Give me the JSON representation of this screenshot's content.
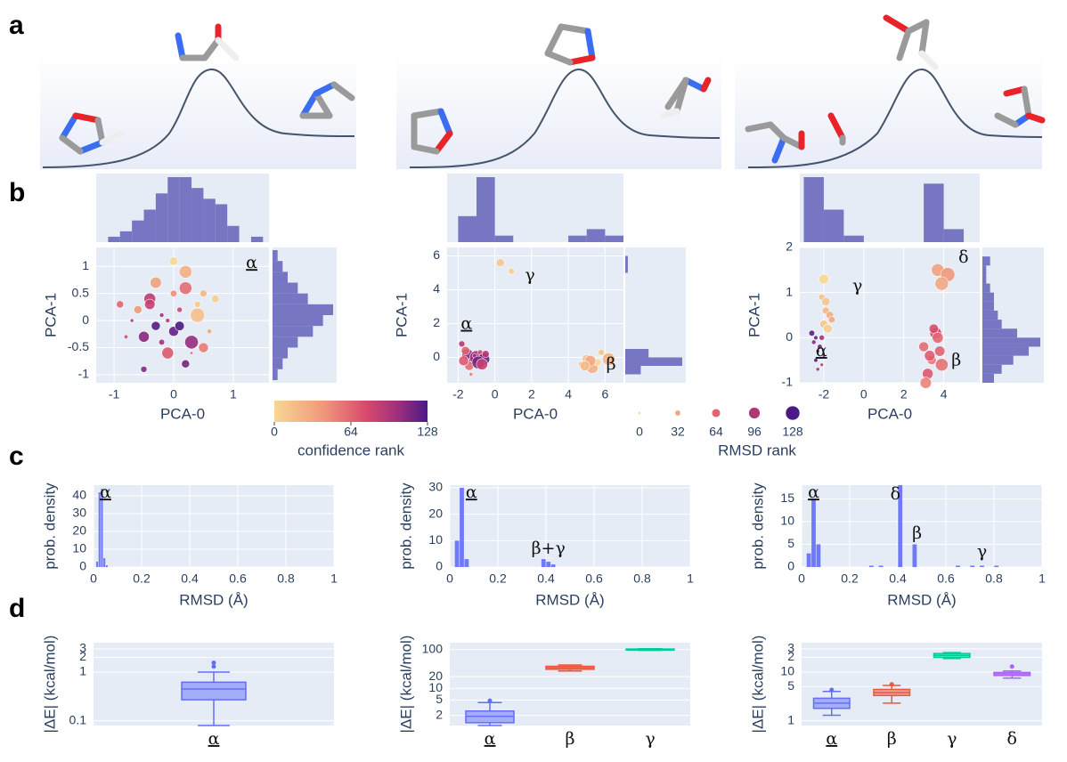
{
  "panel_labels": [
    "a",
    "b",
    "c",
    "d"
  ],
  "color_legend": {
    "ticks": [
      0,
      64,
      128
    ],
    "label": "confidence rank"
  },
  "size_legend": {
    "ticks": [
      0,
      32,
      64,
      96,
      128
    ],
    "label": "RMSD rank"
  },
  "chart_data": [
    {
      "type": "scatter",
      "x_label": "PCA-0",
      "y_label": "PCA-1",
      "xlim": [
        -1.3,
        1.6
      ],
      "ylim": [
        -1.15,
        1.35
      ],
      "xticks": [
        -1,
        0,
        1
      ],
      "yticks": [
        -1,
        -0.5,
        0,
        0.5,
        1
      ],
      "x": [
        -0.6,
        -0.4,
        -0.2,
        0,
        0.2,
        0.4,
        -0.5,
        -0.3,
        0.1,
        0.3,
        0.5,
        -0.7,
        -0.1,
        0.2,
        0.6,
        -0.4,
        0,
        0.4,
        -0.2,
        0.1,
        -0.8,
        0.7,
        -0.3,
        0.3,
        0,
        -0.5,
        0.5,
        0.2,
        -0.1,
        -0.9
      ],
      "y": [
        0.2,
        0.4,
        0.1,
        -0.2,
        0.6,
        0.3,
        -0.3,
        -0.1,
        0.2,
        -0.4,
        0.5,
        0,
        -0.6,
        -0.8,
        -0.2,
        0.3,
        0.5,
        0.1,
        -0.4,
        -0.1,
        -0.3,
        0.4,
        0.7,
        -0.6,
        1.1,
        -0.9,
        -0.5,
        0.9,
        0,
        0.3
      ],
      "color_rank": [
        40,
        90,
        100,
        120,
        60,
        10,
        110,
        125,
        80,
        105,
        20,
        95,
        70,
        115,
        30,
        85,
        45,
        15,
        100,
        128,
        75,
        5,
        35,
        60,
        0,
        110,
        55,
        25,
        90,
        65
      ],
      "size_rank": [
        60,
        100,
        20,
        80,
        110,
        40,
        90,
        70,
        30,
        120,
        50,
        10,
        100,
        60,
        25,
        85,
        45,
        128,
        35,
        75,
        15,
        55,
        95,
        5,
        65,
        40,
        80,
        110,
        20,
        50
      ],
      "x_hist": {
        "bins": [
          -1.1,
          -0.9,
          -0.7,
          -0.5,
          -0.3,
          -0.1,
          0.1,
          0.3,
          0.5,
          0.7,
          0.9,
          1.1,
          1.3,
          1.5
        ],
        "counts": [
          1,
          2,
          4,
          6,
          9,
          12,
          12,
          10,
          8,
          7,
          3,
          0,
          1
        ]
      },
      "y_hist": {
        "bins": [
          -1.1,
          -0.9,
          -0.7,
          -0.5,
          -0.3,
          -0.1,
          0.1,
          0.3,
          0.5,
          0.7,
          0.9,
          1.1,
          1.3
        ],
        "counts": [
          1,
          2,
          3,
          5,
          8,
          10,
          12,
          7,
          5,
          3,
          2,
          1
        ]
      },
      "annotations": [
        "α"
      ]
    },
    {
      "type": "scatter",
      "x_label": "PCA-0",
      "y_label": "PCA-1",
      "xlim": [
        -2.6,
        7
      ],
      "ylim": [
        -1.5,
        6.5
      ],
      "xticks": [
        -2,
        0,
        2,
        4,
        6
      ],
      "yticks": [
        0,
        2,
        4,
        6
      ],
      "x": [
        -1.8,
        -1.5,
        -1.2,
        -1,
        -0.8,
        -0.6,
        -1.4,
        -1.1,
        -0.9,
        -0.5,
        -1.7,
        -1.3,
        -0.7,
        -1.6,
        0.3,
        0.9,
        4.7,
        5,
        5.3,
        5.6,
        6,
        5.2,
        5.8,
        4.9,
        6.2
      ],
      "y": [
        0.8,
        0.2,
        -0.2,
        0,
        0.3,
        -0.1,
        -0.5,
        0.1,
        -0.3,
        0.2,
        -0.2,
        -1,
        -0.4,
        0.4,
        5.6,
        5.1,
        -0.4,
        -0.1,
        -0.6,
        -0.3,
        0.1,
        -0.2,
        0.3,
        -0.5,
        -0.1
      ],
      "color_rank": [
        90,
        110,
        128,
        100,
        75,
        120,
        60,
        105,
        115,
        95,
        70,
        55,
        85,
        65,
        10,
        5,
        20,
        15,
        25,
        0,
        8,
        30,
        12,
        18,
        22
      ],
      "size_rank": [
        40,
        90,
        60,
        120,
        30,
        100,
        70,
        20,
        110,
        50,
        80,
        10,
        95,
        65,
        60,
        40,
        30,
        70,
        100,
        50,
        20,
        90,
        40,
        80,
        110
      ],
      "x_hist": {
        "bins": [
          -2,
          -1,
          0,
          1,
          2,
          3,
          4,
          5,
          6,
          7
        ],
        "counts": [
          4,
          10,
          1,
          0,
          0,
          0,
          1,
          2,
          1
        ]
      },
      "y_hist": {
        "bins": [
          -1,
          -0.5,
          0,
          0.5,
          1,
          1.5,
          2,
          2.5,
          3,
          3.5,
          4,
          4.5,
          5,
          5.5,
          6
        ],
        "counts": [
          6,
          22,
          9,
          0,
          0,
          0,
          0,
          0,
          0,
          0,
          0,
          0,
          1,
          1
        ]
      },
      "annotations": [
        "α",
        "γ",
        "β"
      ]
    },
    {
      "type": "scatter",
      "x_label": "PCA-0",
      "y_label": "PCA-1",
      "xlim": [
        -3.2,
        5.8
      ],
      "ylim": [
        -1,
        2
      ],
      "xticks": [
        -2,
        0,
        2,
        4
      ],
      "yticks": [
        -1,
        0,
        1,
        2
      ],
      "x": [
        -2.5,
        -2.3,
        -2.1,
        -2.4,
        -2.2,
        -2,
        -2.6,
        -2.3,
        -2.1,
        -2.4,
        -2,
        -1.9,
        -1.8,
        -2.1,
        -1.7,
        -2,
        -1.6,
        -1.9,
        3,
        3.2,
        3.4,
        3.6,
        3.8,
        3.1,
        3.5,
        3.9,
        3.3,
        3.7,
        3.7,
        4.2,
        3.9
      ],
      "y": [
        -0.1,
        -0.3,
        0,
        -0.5,
        -0.2,
        -0.4,
        0.1,
        -0.7,
        -0.6,
        0,
        0.3,
        0.6,
        0.2,
        0.9,
        0.5,
        1.3,
        0.4,
        0.8,
        -0.2,
        -0.8,
        -0.5,
        0.1,
        -0.3,
        -1,
        0.2,
        -0.6,
        -0.4,
        0,
        1.5,
        1.4,
        1.2
      ],
      "color_rank": [
        110,
        120,
        100,
        128,
        115,
        105,
        125,
        95,
        90,
        118,
        10,
        20,
        5,
        15,
        25,
        0,
        30,
        12,
        60,
        70,
        55,
        80,
        65,
        50,
        75,
        58,
        68,
        62,
        35,
        40,
        30
      ],
      "size_rank": [
        20,
        10,
        30,
        15,
        25,
        5,
        35,
        12,
        8,
        18,
        60,
        50,
        70,
        40,
        55,
        80,
        45,
        65,
        80,
        90,
        70,
        100,
        85,
        95,
        75,
        110,
        88,
        92,
        110,
        128,
        120
      ],
      "x_hist": {
        "bins": [
          -3,
          -2,
          -1,
          0,
          1,
          2,
          3,
          4,
          5
        ],
        "counts": [
          10,
          5,
          1,
          0,
          0,
          0,
          9,
          2
        ]
      },
      "y_hist": {
        "bins": [
          -1,
          -0.8,
          -0.6,
          -0.4,
          -0.2,
          0,
          0.2,
          0.4,
          0.6,
          0.8,
          1,
          1.2,
          1.4,
          1.6,
          1.8,
          2
        ],
        "counts": [
          3,
          5,
          8,
          12,
          15,
          9,
          5,
          4,
          3,
          3,
          2,
          1,
          1,
          2,
          0
        ]
      },
      "annotations": [
        "α",
        "γ",
        "β",
        "δ"
      ]
    },
    {
      "type": "histogram",
      "x_label": "RMSD (Å)",
      "y_label": "prob. density",
      "xlim": [
        0,
        1
      ],
      "ylim": [
        0,
        46
      ],
      "xticks": [
        0,
        0.2,
        0.4,
        0.6,
        0.8,
        1
      ],
      "yticks": [
        0,
        10,
        20,
        30,
        40
      ],
      "color": "#636efa",
      "bins": [
        0.01,
        0.02,
        0.03,
        0.04,
        0.05,
        0.06
      ],
      "counts": [
        3,
        42,
        44,
        5,
        1
      ],
      "annotations": [
        "α"
      ]
    },
    {
      "type": "histogram",
      "x_label": "RMSD (Å)",
      "y_label": "prob. density",
      "xlim": [
        0,
        1
      ],
      "ylim": [
        0,
        31
      ],
      "xticks": [
        0,
        0.2,
        0.4,
        0.6,
        0.8,
        1
      ],
      "yticks": [
        0,
        10,
        20,
        30
      ],
      "color": "#636efa",
      "bins": [
        0.02,
        0.04,
        0.06,
        0.08,
        0.1,
        0.12,
        0.14,
        0.16,
        0.18,
        0.2,
        0.22,
        0.24,
        0.26,
        0.28,
        0.3,
        0.32,
        0.34,
        0.36,
        0.38,
        0.4,
        0.42,
        0.44
      ],
      "counts": [
        10,
        30,
        3,
        0,
        0,
        0,
        0,
        0,
        0,
        0,
        0,
        0,
        0,
        0,
        0,
        0,
        0,
        0,
        3,
        2,
        1
      ],
      "annotations": [
        "α",
        "β+γ"
      ]
    },
    {
      "type": "histogram",
      "x_label": "RMSD (Å)",
      "y_label": "prob. density",
      "xlim": [
        0,
        1
      ],
      "ylim": [
        0,
        18
      ],
      "xticks": [
        0,
        0.2,
        0.4,
        0.6,
        0.8,
        1
      ],
      "yticks": [
        0,
        5,
        10,
        15
      ],
      "color": "#636efa",
      "bins": [
        0.02,
        0.04,
        0.06,
        0.08,
        0.1,
        0.12,
        0.14,
        0.16,
        0.18,
        0.2,
        0.22,
        0.24,
        0.26,
        0.28,
        0.3,
        0.32,
        0.34,
        0.36,
        0.38,
        0.4,
        0.42,
        0.44,
        0.46,
        0.48,
        0.5,
        0.52,
        0.54,
        0.56,
        0.58,
        0.6,
        0.62,
        0.64,
        0.66,
        0.68,
        0.7,
        0.72,
        0.74,
        0.76,
        0.78,
        0.8,
        0.82,
        0.84
      ],
      "counts": [
        3,
        15,
        5,
        0,
        0,
        0,
        0,
        0,
        0,
        0,
        0,
        0,
        0,
        0.3,
        0,
        0.3,
        0,
        0,
        0,
        18,
        0,
        0,
        5,
        0,
        0,
        0,
        0,
        0,
        0,
        0,
        0,
        0.3,
        0,
        0,
        0.3,
        0,
        0.3,
        0,
        0,
        0.3,
        0
      ],
      "annotations": [
        "α",
        "δ",
        "β",
        "γ"
      ]
    },
    {
      "type": "box",
      "y_label": "|ΔE| (kcal/mol)",
      "log_y": true,
      "ylim": [
        0.08,
        4
      ],
      "yticks": [
        0.1,
        1,
        2,
        3
      ],
      "categories": [
        "α"
      ],
      "boxes": [
        {
          "color": "#636efa",
          "min": 0.08,
          "q1": 0.27,
          "median": 0.45,
          "q3": 0.62,
          "max": 1.0,
          "outliers": [
            1.3,
            1.55
          ]
        }
      ]
    },
    {
      "type": "box",
      "y_label": "|ΔE| (kcal/mol)",
      "log_y": true,
      "ylim": [
        1.1,
        150
      ],
      "yticks": [
        2,
        5,
        10,
        20,
        100
      ],
      "categories": [
        "α",
        "β",
        "γ"
      ],
      "boxes": [
        {
          "color": "#636efa",
          "min": 1.1,
          "q1": 1.3,
          "median": 1.9,
          "q3": 2.6,
          "max": 4.3,
          "outliers": [
            4.8
          ]
        },
        {
          "color": "#ef553b",
          "min": 28,
          "q1": 31,
          "median": 34,
          "q3": 37,
          "max": 40,
          "outliers": []
        },
        {
          "color": "#00cc96",
          "min": 95,
          "q1": 97,
          "median": 100,
          "q3": 103,
          "max": 105,
          "outliers": []
        }
      ]
    },
    {
      "type": "box",
      "y_label": "|ΔE| (kcal/mol)",
      "log_y": true,
      "ylim": [
        0.8,
        40
      ],
      "yticks": [
        1,
        5,
        10,
        {
          "value": 20,
          "label": "2"
        },
        {
          "value": 30,
          "label": "3"
        }
      ],
      "categories": [
        "α",
        "β",
        "γ",
        "δ"
      ],
      "boxes": [
        {
          "color": "#636efa",
          "min": 1.3,
          "q1": 1.8,
          "median": 2.3,
          "q3": 2.9,
          "max": 4,
          "outliers": [
            4.3
          ]
        },
        {
          "color": "#ef553b",
          "min": 2.3,
          "q1": 3.3,
          "median": 3.8,
          "q3": 4.4,
          "max": 5.3,
          "outliers": [
            5.6
          ]
        },
        {
          "color": "#00cc96",
          "min": 19,
          "q1": 20,
          "median": 22,
          "q3": 24,
          "max": 25,
          "outliers": []
        },
        {
          "color": "#ab63fa",
          "min": 7.5,
          "q1": 8.5,
          "median": 9.2,
          "q3": 9.8,
          "max": 10.5,
          "outliers": [
            13
          ]
        }
      ]
    }
  ]
}
